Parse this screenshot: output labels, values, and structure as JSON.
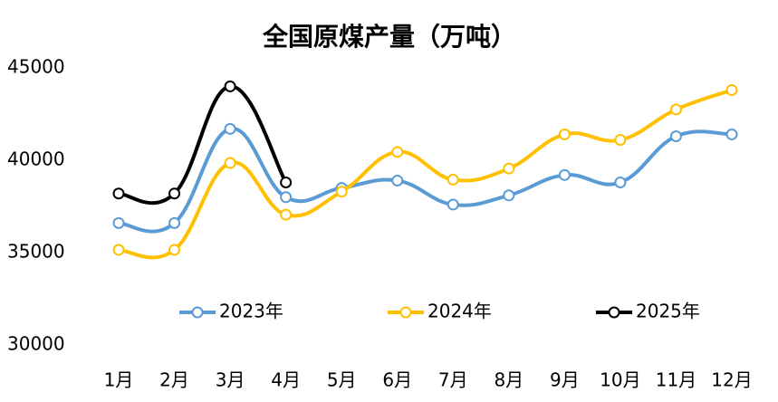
{
  "chart_data": {
    "type": "line",
    "title": "全国原煤产量（万吨）",
    "categories": [
      "1月",
      "2月",
      "3月",
      "4月",
      "5月",
      "6月",
      "7月",
      "8月",
      "9月",
      "10月",
      "11月",
      "12月"
    ],
    "series": [
      {
        "name": "2023年",
        "color": "#5b9bd5",
        "values": [
          36600,
          36600,
          41700,
          38000,
          38500,
          38900,
          37600,
          38100,
          39200,
          38800,
          41300,
          41400
        ]
      },
      {
        "name": "2024年",
        "color": "#ffc000",
        "values": [
          35150,
          35150,
          39850,
          37050,
          38300,
          40450,
          38950,
          39550,
          41400,
          41100,
          42750,
          43800
        ]
      },
      {
        "name": "2025年",
        "color": "#000000",
        "values": [
          38200,
          38200,
          44000,
          38800,
          null,
          null,
          null,
          null,
          null,
          null,
          null,
          null
        ]
      }
    ],
    "ylim": [
      30000,
      45000
    ],
    "yticks": [
      30000,
      35000,
      40000,
      45000
    ],
    "grid": false,
    "legend": "bottom",
    "smooth": true
  }
}
